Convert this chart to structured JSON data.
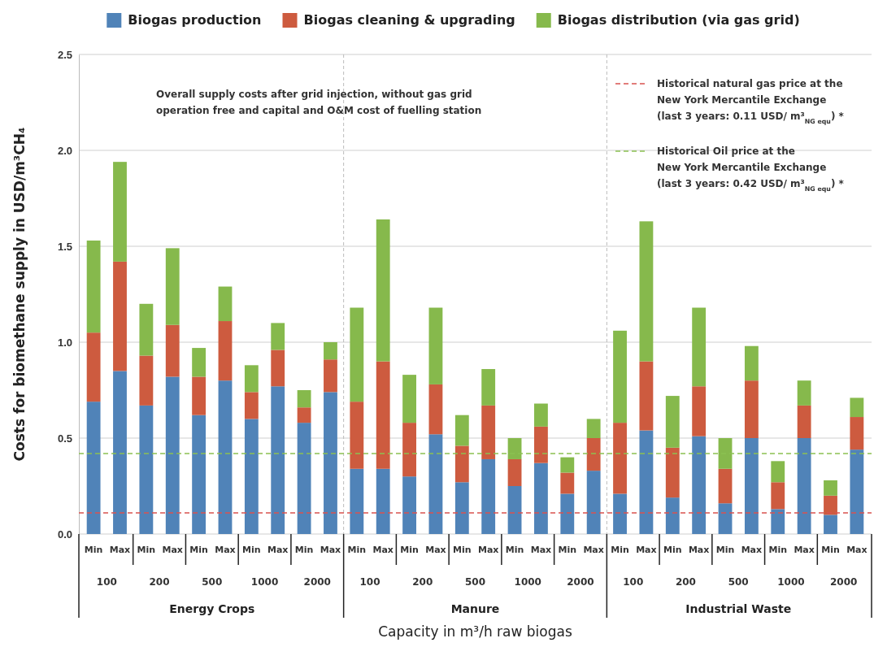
{
  "chart_data": {
    "type": "bar",
    "stacked": true,
    "ylabel": "Costs for biomethane supply in USD/m³CH₄",
    "xlabel": "Capacity in m³/h raw biogas",
    "categories": [
      "Min",
      "Max",
      "Min",
      "Max",
      "Min",
      "Max",
      "Min",
      "Max",
      "Min",
      "Max",
      "Min",
      "Max",
      "Min",
      "Max",
      "Min",
      "Max",
      "Min",
      "Max",
      "Min",
      "Max",
      "Min",
      "Max",
      "Min",
      "Max",
      "Min",
      "Max",
      "Min",
      "Max",
      "Min",
      "Max"
    ],
    "series": [
      {
        "name": "Biogas production",
        "color": "#5083b8",
        "values": [
          0.69,
          0.85,
          0.67,
          0.82,
          0.62,
          0.8,
          0.6,
          0.77,
          0.58,
          0.74,
          0.34,
          0.34,
          0.3,
          0.52,
          0.27,
          0.39,
          0.25,
          0.37,
          0.21,
          0.33,
          0.21,
          0.54,
          0.19,
          0.51,
          0.16,
          0.5,
          0.13,
          0.5,
          0.1,
          0.44
        ]
      },
      {
        "name": "Biogas cleaning & upgrading",
        "color": "#cd5b3f",
        "values": [
          0.36,
          0.57,
          0.26,
          0.27,
          0.2,
          0.31,
          0.14,
          0.19,
          0.08,
          0.17,
          0.35,
          0.56,
          0.28,
          0.26,
          0.19,
          0.28,
          0.14,
          0.19,
          0.11,
          0.17,
          0.37,
          0.36,
          0.26,
          0.26,
          0.18,
          0.3,
          0.14,
          0.17,
          0.1,
          0.17
        ]
      },
      {
        "name": "Biogas distribution (via gas grid)",
        "color": "#86b94c",
        "values": [
          0.48,
          0.52,
          0.27,
          0.4,
          0.15,
          0.18,
          0.14,
          0.14,
          0.09,
          0.09,
          0.49,
          0.74,
          0.25,
          0.4,
          0.16,
          0.19,
          0.11,
          0.12,
          0.08,
          0.1,
          0.48,
          0.73,
          0.27,
          0.41,
          0.16,
          0.18,
          0.11,
          0.13,
          0.08,
          0.1
        ]
      }
    ],
    "ylim": [
      0,
      2.5
    ],
    "yticks": [
      {
        "value": 0,
        "label": "0.0"
      },
      {
        "value": 0.5,
        "label": "0.5"
      },
      {
        "value": 1,
        "label": "1.0"
      },
      {
        "value": 1.5,
        "label": "1.5"
      },
      {
        "value": 2,
        "label": "2.0"
      },
      {
        "value": 2.5,
        "label": "2.5"
      }
    ],
    "grid": "y",
    "legend": "top",
    "ref_lines": [
      {
        "axis": "y",
        "value": 0.11,
        "label": "Historical natural gas price at the\nNew York Mercantile Exchange\n(last 3 years: 0.11 USD/ m³$_{NG equ}$) *",
        "color": "#d9534f",
        "line_style": "dashed"
      },
      {
        "axis": "y",
        "value": 0.42,
        "label": "Historical Oil price at the\nNew York Mercantile Exchange\n(last 3 years: 0.42 USD/ m³$_{NG equ}$) *",
        "color": "#8cc152",
        "line_style": "dashed"
      }
    ],
    "annotations": [
      "100",
      "200",
      "500",
      "1000",
      "2000",
      "100",
      "200",
      "500",
      "1000",
      "2000",
      "100",
      "200",
      "500",
      "1000",
      "2000",
      "Energy Crops",
      "Manure",
      "Industrial Waste",
      "Overall supply costs after grid injection, without gas grid\noperation free and capital and O&M cost of fuelling station"
    ]
  }
}
